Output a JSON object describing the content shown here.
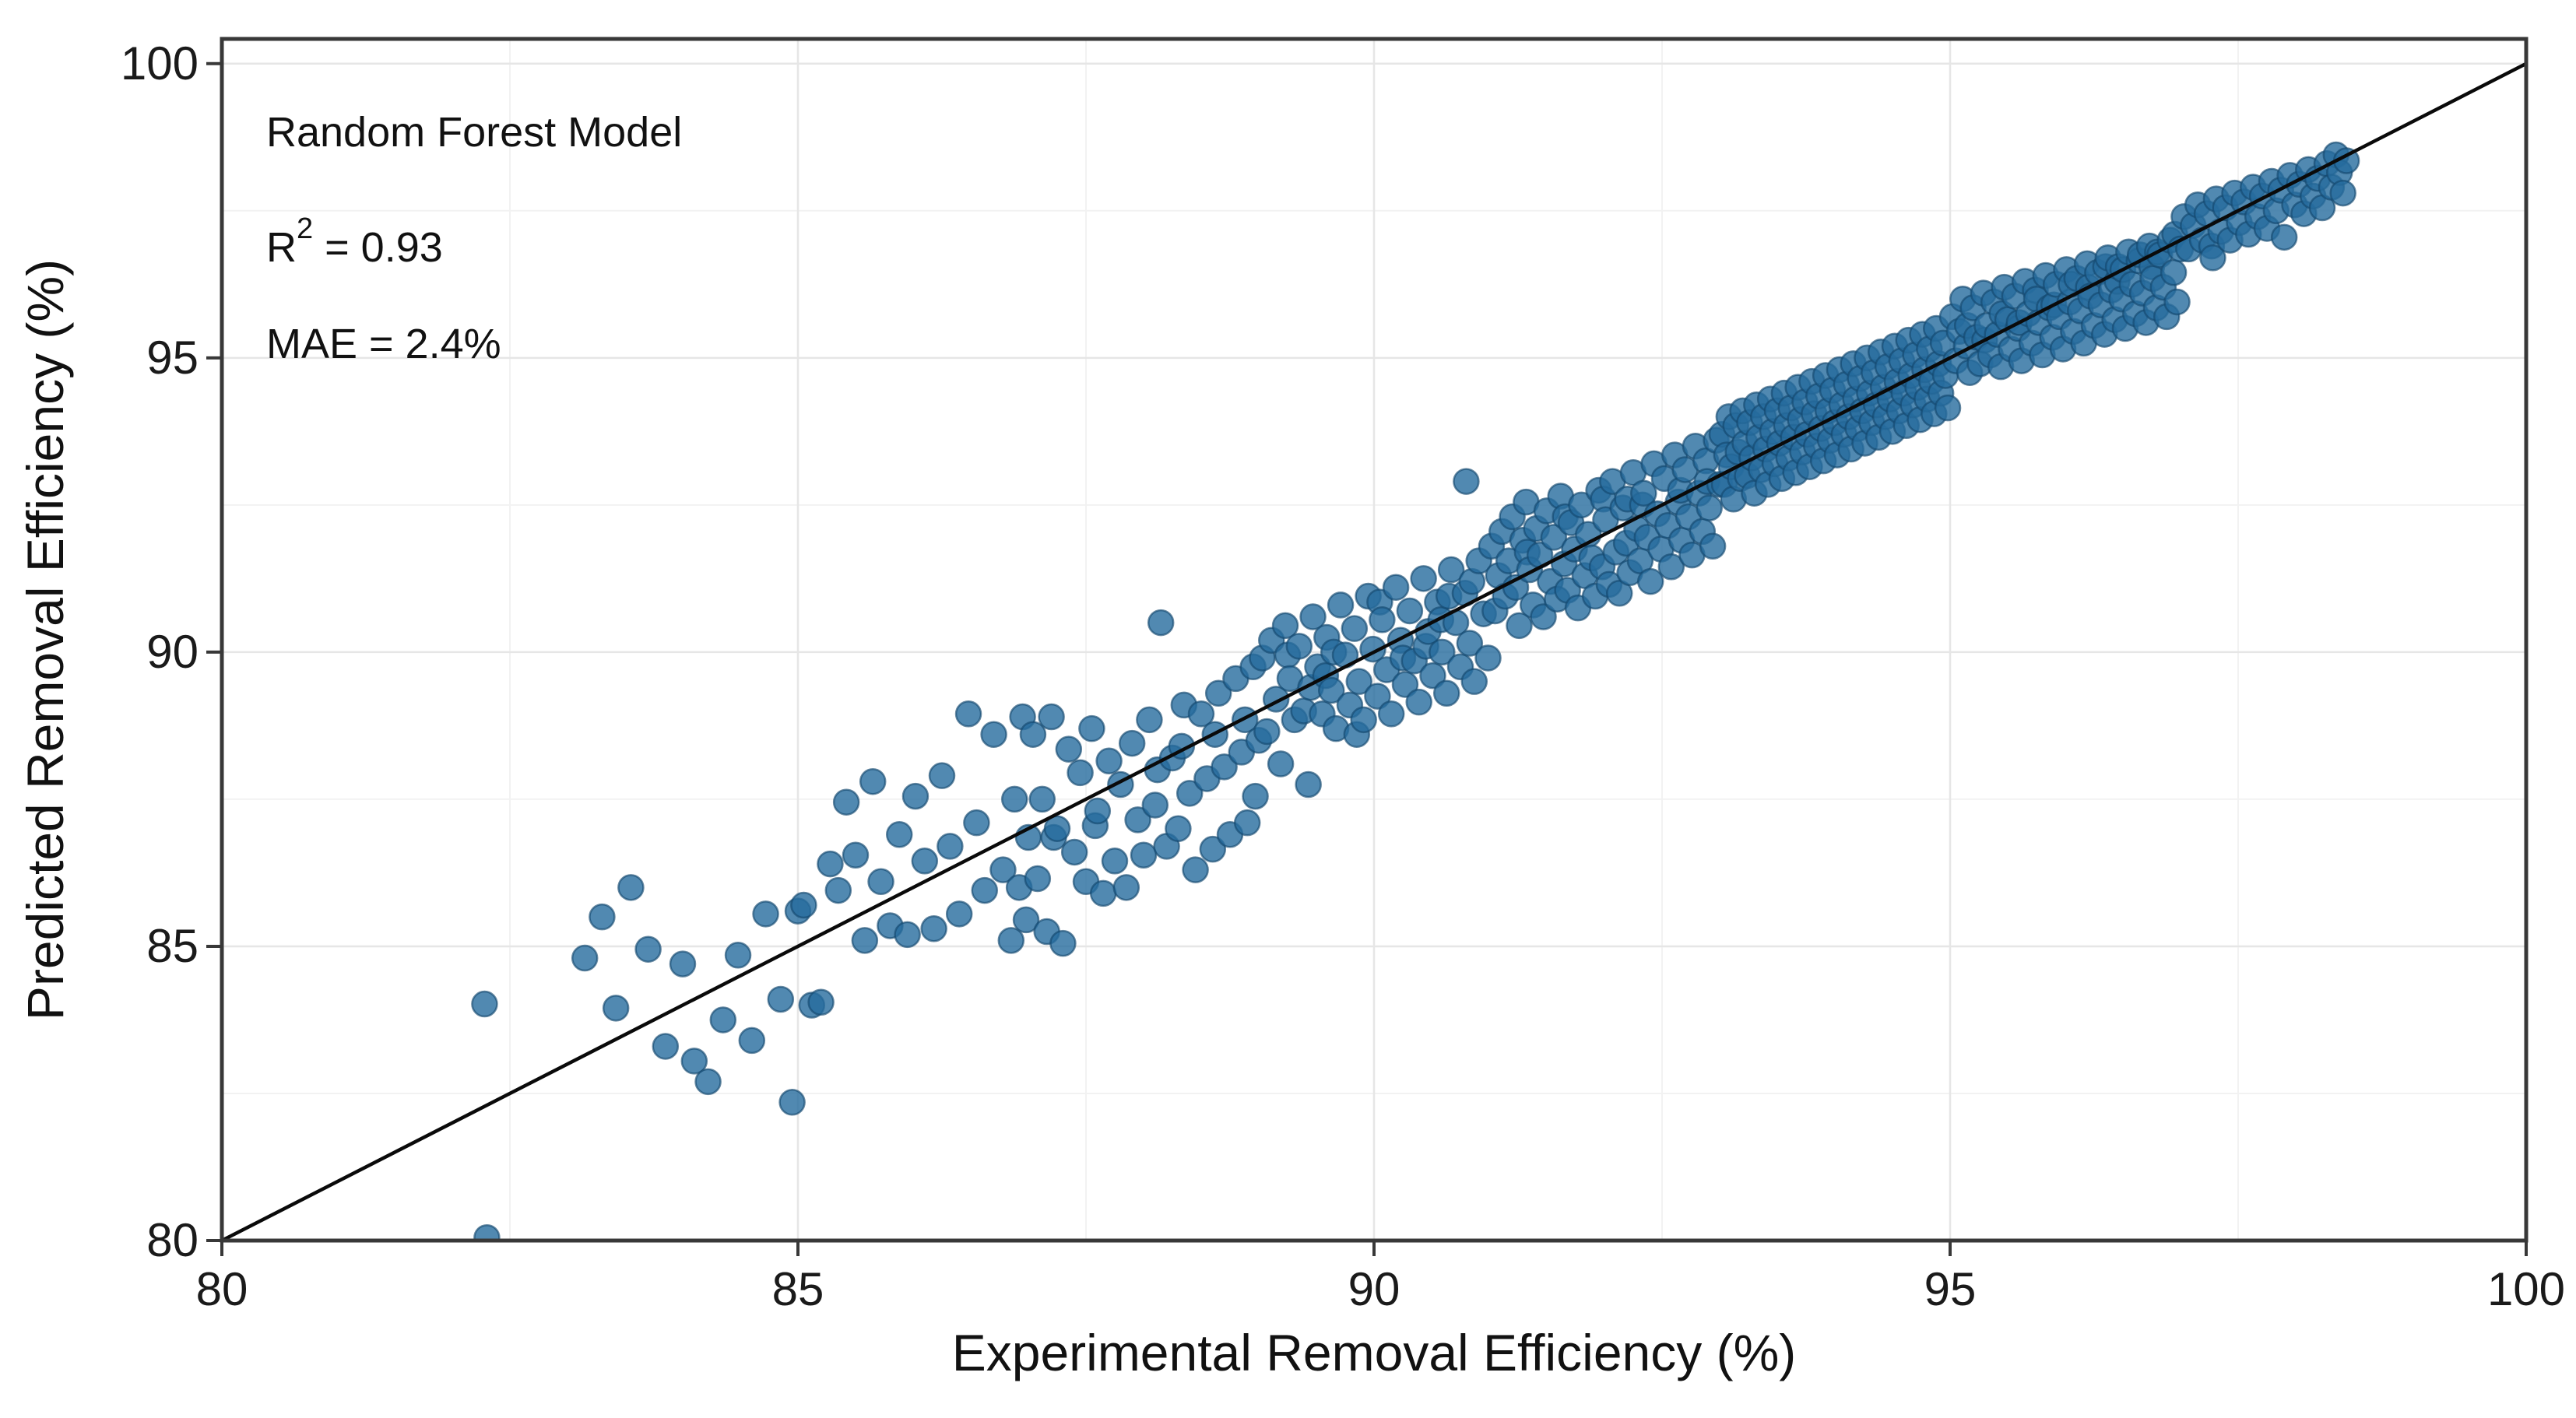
{
  "annotation": {
    "model": "Random Forest Model",
    "r2_prefix": "R",
    "r2_sup": "2",
    "r2_rest": " = 0.93",
    "mae": "MAE = 2.4%"
  },
  "chart_data": {
    "type": "scatter",
    "title": "",
    "xlabel": "Experimental Removal Efficiency (%)",
    "ylabel": "Predicted Removal Efficiency (%)",
    "annotation_lines": [
      "Random Forest Model",
      "R² = 0.93",
      "MAE = 2.4%"
    ],
    "xlim": [
      80,
      100
    ],
    "ylim": [
      80,
      100.42
    ],
    "grid": true,
    "legend_position": "none",
    "x_ticks": [
      {
        "v": 80,
        "label": "80"
      },
      {
        "v": 85,
        "label": "85"
      },
      {
        "v": 90,
        "label": "90"
      },
      {
        "v": 95,
        "label": "95"
      },
      {
        "v": 100,
        "label": "100"
      }
    ],
    "y_ticks": [
      {
        "v": 80,
        "label": "80"
      },
      {
        "v": 85,
        "label": "85"
      },
      {
        "v": 90,
        "label": "90"
      },
      {
        "v": 95,
        "label": "95"
      },
      {
        "v": 100,
        "label": "100"
      }
    ],
    "minor_ticks": [
      82.5,
      87.5,
      92.5,
      97.5
    ],
    "colors": {
      "point_fill": "#266C9E",
      "point_edge": "#14486F",
      "identity_line": "#0a0a0a",
      "axis": "#383838",
      "grid_major": "#e6e6e6",
      "grid_minor": "#f2f2f2"
    },
    "point_radius": 16,
    "identity_line": {
      "x": [
        80,
        100
      ],
      "y": [
        80,
        100
      ]
    },
    "points": [
      82.28,
      84.02,
      82.3,
      80.05,
      83.15,
      84.8,
      83.3,
      85.5,
      83.42,
      83.95,
      83.55,
      86.0,
      83.7,
      84.95,
      83.85,
      83.3,
      84.0,
      84.7,
      84.1,
      83.05,
      84.22,
      82.7,
      84.35,
      83.75,
      84.48,
      84.85,
      84.6,
      83.4,
      84.72,
      85.55,
      84.85,
      84.1,
      84.95,
      82.35,
      85.0,
      85.6,
      85.05,
      85.7,
      85.12,
      84.0,
      85.2,
      84.05,
      85.28,
      86.4,
      85.35,
      85.95,
      85.42,
      87.45,
      85.5,
      86.55,
      85.58,
      85.1,
      85.65,
      87.8,
      85.72,
      86.1,
      85.8,
      85.35,
      85.88,
      86.9,
      85.95,
      85.2,
      86.02,
      87.55,
      86.1,
      86.45,
      86.18,
      85.3,
      86.25,
      87.9,
      86.32,
      86.7,
      86.4,
      85.55,
      86.48,
      88.95,
      86.55,
      87.1,
      86.62,
      85.95,
      86.7,
      88.6,
      86.78,
      86.3,
      86.85,
      85.1,
      86.88,
      87.5,
      86.92,
      86.0,
      86.95,
      88.9,
      86.98,
      85.45,
      87.0,
      86.85,
      87.04,
      88.6,
      87.08,
      86.15,
      87.12,
      87.5,
      87.16,
      85.25,
      87.2,
      88.9,
      87.22,
      86.85,
      87.25,
      87.0,
      87.3,
      85.05,
      87.35,
      88.35,
      87.4,
      86.6,
      87.45,
      87.95,
      87.5,
      86.1,
      87.55,
      88.7,
      87.58,
      87.05,
      87.6,
      87.3,
      87.65,
      85.9,
      87.7,
      88.15,
      87.75,
      86.45,
      87.8,
      87.75,
      87.85,
      86.0,
      87.9,
      88.45,
      87.95,
      87.15,
      88.0,
      86.55,
      88.05,
      88.85,
      88.1,
      87.4,
      88.12,
      88.0,
      88.15,
      90.5,
      88.2,
      86.7,
      88.25,
      88.2,
      88.3,
      87.0,
      88.33,
      88.4,
      88.35,
      89.1,
      88.4,
      87.6,
      88.45,
      86.3,
      88.5,
      88.95,
      88.55,
      87.85,
      88.6,
      86.65,
      88.62,
      88.6,
      88.65,
      89.3,
      88.7,
      88.05,
      88.75,
      86.9,
      88.8,
      89.55,
      88.85,
      88.3,
      88.88,
      88.85,
      88.9,
      87.1,
      88.95,
      89.75,
      88.97,
      87.55,
      89.0,
      88.5,
      89.03,
      89.9,
      89.07,
      88.65,
      89.11,
      90.2,
      89.15,
      89.2,
      89.19,
      88.1,
      89.23,
      90.45,
      89.25,
      89.95,
      89.27,
      89.55,
      89.31,
      88.85,
      89.35,
      90.1,
      89.39,
      89.0,
      89.43,
      87.75,
      89.45,
      89.4,
      89.47,
      90.6,
      89.51,
      89.75,
      89.55,
      88.95,
      89.58,
      89.6,
      89.59,
      90.25,
      89.63,
      89.35,
      89.65,
      90.0,
      89.67,
      88.7,
      89.71,
      90.8,
      89.75,
      89.95,
      89.79,
      89.1,
      89.83,
      90.4,
      89.85,
      88.6,
      89.87,
      89.5,
      89.91,
      88.85,
      89.95,
      90.95,
      89.99,
      90.05,
      90.03,
      89.25,
      90.05,
      90.85,
      90.07,
      90.55,
      90.11,
      89.7,
      90.15,
      88.95,
      90.19,
      91.1,
      90.23,
      90.2,
      90.25,
      89.9,
      90.27,
      89.45,
      90.31,
      90.7,
      90.35,
      89.85,
      90.39,
      89.15,
      90.43,
      91.25,
      90.45,
      90.1,
      90.47,
      90.35,
      90.51,
      89.6,
      90.55,
      90.85,
      90.58,
      90.55,
      90.59,
      90.0,
      90.63,
      89.3,
      90.65,
      90.95,
      90.67,
      91.4,
      90.71,
      90.5,
      90.75,
      89.75,
      90.79,
      91.0,
      90.8,
      92.9,
      90.83,
      90.15,
      90.85,
      91.2,
      90.87,
      89.5,
      90.91,
      91.55,
      90.95,
      90.65,
      90.99,
      89.9,
      91.02,
      91.8,
      91.05,
      90.7,
      91.08,
      91.3,
      91.11,
      92.05,
      91.14,
      90.95,
      91.17,
      91.55,
      91.2,
      92.3,
      91.23,
      91.1,
      91.26,
      90.45,
      91.29,
      91.9,
      91.32,
      92.55,
      91.33,
      91.7,
      91.35,
      91.4,
      91.38,
      90.8,
      91.41,
      92.1,
      91.44,
      91.65,
      91.47,
      90.6,
      91.5,
      92.4,
      91.53,
      91.2,
      91.56,
      91.95,
      91.59,
      90.9,
      91.62,
      92.65,
      91.65,
      91.5,
      91.66,
      92.3,
      91.68,
      91.05,
      91.71,
      92.2,
      91.74,
      91.75,
      91.77,
      90.75,
      91.8,
      92.5,
      91.83,
      91.3,
      91.86,
      92.0,
      91.89,
      91.6,
      91.92,
      90.95,
      91.95,
      92.75,
      91.98,
      91.45,
      91.99,
      92.6,
      92.01,
      92.25,
      92.04,
      91.15,
      92.07,
      92.9,
      92.1,
      91.7,
      92.13,
      91.0,
      92.16,
      92.45,
      92.19,
      91.85,
      92.2,
      92.6,
      92.22,
      91.35,
      92.25,
      93.05,
      92.28,
      92.1,
      92.31,
      91.55,
      92.33,
      92.5,
      92.34,
      92.7,
      92.37,
      91.95,
      92.4,
      91.2,
      92.43,
      93.2,
      92.46,
      92.35,
      92.49,
      91.75,
      92.52,
      92.95,
      92.55,
      92.15,
      92.58,
      91.45,
      92.61,
      93.35,
      92.64,
      92.55,
      92.66,
      92.75,
      92.67,
      91.9,
      92.7,
      93.1,
      92.73,
      92.3,
      92.76,
      91.65,
      92.79,
      93.5,
      92.82,
      92.7,
      92.85,
      92.05,
      92.88,
      93.25,
      92.89,
      92.9,
      92.91,
      92.45,
      92.94,
      91.8,
      92.97,
      93.6,
      93.0,
      92.85,
      93.02,
      93.7,
      93.04,
      92.85,
      93.06,
      93.35,
      93.08,
      94.0,
      93.1,
      93.15,
      93.12,
      92.6,
      93.14,
      93.85,
      93.16,
      93.4,
      93.18,
      92.95,
      93.2,
      94.1,
      93.22,
      93.55,
      93.24,
      93.0,
      93.26,
      93.9,
      93.28,
      93.3,
      93.3,
      92.7,
      93.32,
      94.2,
      93.34,
      93.65,
      93.36,
      93.1,
      93.38,
      94.0,
      93.4,
      93.45,
      93.42,
      92.85,
      93.44,
      94.3,
      93.46,
      93.75,
      93.48,
      93.2,
      93.5,
      94.1,
      93.52,
      93.55,
      93.54,
      92.95,
      93.56,
      94.4,
      93.58,
      93.85,
      93.6,
      93.3,
      93.62,
      94.15,
      93.64,
      93.65,
      93.66,
      93.05,
      93.68,
      94.5,
      93.7,
      93.95,
      93.72,
      93.4,
      93.74,
      94.25,
      93.76,
      93.7,
      93.78,
      93.15,
      93.8,
      94.6,
      93.82,
      94.05,
      93.84,
      93.5,
      93.86,
      94.35,
      93.88,
      93.8,
      93.9,
      93.25,
      93.92,
      94.7,
      93.94,
      94.1,
      93.96,
      93.6,
      93.98,
      94.45,
      94.0,
      93.9,
      94.02,
      93.35,
      94.04,
      94.8,
      94.06,
      94.2,
      94.08,
      93.7,
      94.1,
      94.55,
      94.12,
      94.0,
      94.14,
      93.45,
      94.16,
      94.9,
      94.18,
      94.3,
      94.2,
      93.8,
      94.22,
      94.65,
      94.24,
      94.1,
      94.26,
      93.55,
      94.28,
      95.0,
      94.3,
      94.4,
      94.32,
      93.9,
      94.34,
      94.75,
      94.36,
      94.2,
      94.38,
      93.65,
      94.4,
      95.1,
      94.42,
      94.5,
      94.44,
      94.0,
      94.46,
      94.85,
      94.48,
      94.3,
      94.5,
      93.75,
      94.52,
      95.2,
      94.54,
      94.6,
      94.56,
      94.1,
      94.58,
      94.95,
      94.6,
      94.4,
      94.62,
      93.85,
      94.64,
      95.3,
      94.66,
      94.7,
      94.68,
      94.2,
      94.7,
      95.05,
      94.72,
      94.5,
      94.74,
      93.95,
      94.76,
      95.4,
      94.78,
      94.8,
      94.8,
      94.3,
      94.82,
      95.15,
      94.84,
      94.6,
      94.86,
      94.05,
      94.88,
      95.5,
      94.9,
      94.9,
      94.92,
      94.4,
      94.94,
      95.25,
      94.96,
      94.7,
      94.98,
      94.15,
      95.02,
      95.7,
      95.05,
      94.95,
      95.08,
      95.45,
      95.11,
      96.0,
      95.14,
      95.2,
      95.15,
      95.55,
      95.17,
      94.75,
      95.2,
      95.85,
      95.23,
      95.35,
      95.26,
      94.9,
      95.29,
      96.1,
      95.3,
      95.3,
      95.32,
      95.55,
      95.35,
      95.05,
      95.38,
      95.95,
      95.41,
      95.4,
      95.44,
      94.85,
      95.45,
      95.75,
      95.47,
      96.2,
      95.5,
      95.65,
      95.53,
      95.15,
      95.56,
      96.05,
      95.59,
      95.5,
      95.6,
      95.6,
      95.62,
      94.95,
      95.65,
      96.3,
      95.68,
      95.75,
      95.71,
      95.25,
      95.74,
      96.15,
      95.75,
      96.0,
      95.77,
      95.6,
      95.8,
      95.05,
      95.83,
      96.4,
      95.86,
      95.85,
      95.89,
      95.35,
      95.9,
      95.9,
      95.92,
      96.25,
      95.95,
      95.7,
      95.98,
      95.15,
      96.01,
      96.5,
      96.04,
      95.95,
      96.05,
      96.25,
      96.07,
      95.45,
      96.1,
      96.35,
      96.13,
      95.8,
      96.16,
      95.25,
      96.19,
      96.6,
      96.2,
      96.2,
      96.22,
      96.05,
      96.25,
      95.55,
      96.28,
      96.45,
      96.31,
      95.9,
      96.34,
      95.4,
      96.35,
      96.55,
      96.37,
      96.7,
      96.4,
      96.15,
      96.43,
      95.65,
      96.45,
      96.3,
      96.46,
      96.55,
      96.49,
      96.0,
      96.5,
      96.5,
      96.52,
      95.5,
      96.55,
      96.8,
      96.58,
      96.25,
      96.61,
      95.75,
      96.64,
      96.65,
      96.65,
      96.75,
      96.67,
      96.1,
      96.7,
      95.6,
      96.73,
      96.9,
      96.75,
      96.55,
      96.76,
      96.35,
      96.79,
      95.85,
      96.8,
      96.8,
      96.82,
      96.75,
      96.85,
      96.2,
      96.88,
      95.7,
      96.91,
      97.0,
      96.94,
      96.45,
      96.95,
      97.1,
      96.97,
      95.95,
      97.0,
      96.85,
      97.03,
      97.4,
      97.07,
      96.85,
      97.11,
      97.25,
      97.15,
      97.6,
      97.19,
      97.0,
      97.23,
      97.45,
      97.27,
      96.9,
      97.28,
      96.7,
      97.31,
      97.7,
      97.35,
      97.15,
      97.39,
      97.55,
      97.43,
      97.0,
      97.47,
      97.8,
      97.51,
      97.3,
      97.55,
      97.65,
      97.59,
      97.1,
      97.63,
      97.9,
      97.67,
      97.4,
      97.71,
      97.75,
      97.75,
      97.2,
      97.79,
      98.0,
      97.83,
      97.5,
      97.87,
      97.85,
      97.9,
      97.05,
      97.95,
      98.1,
      97.99,
      97.6,
      98.03,
      97.95,
      98.07,
      97.45,
      98.11,
      98.2,
      98.15,
      97.75,
      98.19,
      98.05,
      98.23,
      97.55,
      98.27,
      98.3,
      98.31,
      97.9,
      98.35,
      98.45,
      98.38,
      98.15,
      98.41,
      97.8,
      98.44,
      98.35
    ]
  }
}
